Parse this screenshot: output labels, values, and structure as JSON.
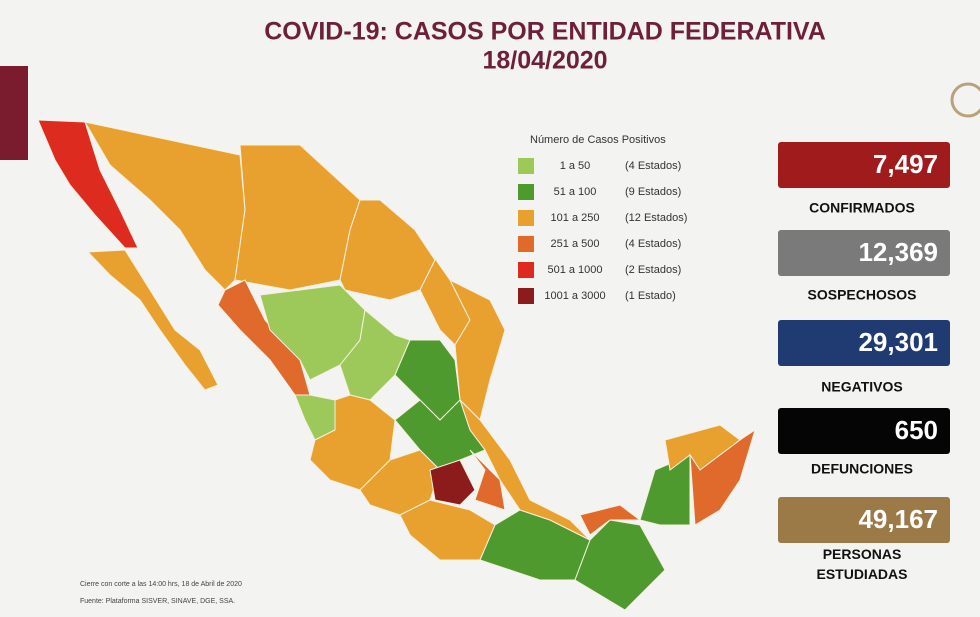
{
  "header": {
    "title": "COVID-19: CASOS POR ENTIDAD FEDERATIVA",
    "date": "18/04/2020"
  },
  "legend": {
    "title": "Número de Casos Positivos",
    "items": [
      {
        "label": "1 a 50",
        "count": "(4 Estados)",
        "color": "#9cc95a"
      },
      {
        "label": "51 a 100",
        "count": "(9 Estados)",
        "color": "#4f9a2e"
      },
      {
        "label": "101 a 250",
        "count": "(12 Estados)",
        "color": "#e8a12e"
      },
      {
        "label": "251 a 500",
        "count": "(4 Estados)",
        "color": "#df6a2c"
      },
      {
        "label": "501 a 1000",
        "count": "(2 Estados)",
        "color": "#dd2c1f"
      },
      {
        "label": "1001 a 3000",
        "count": "(1 Estado)",
        "color": "#8c1b1b"
      }
    ]
  },
  "stats": [
    {
      "value": "7,497",
      "label": "CONFIRMADOS",
      "color": "#a01c1c"
    },
    {
      "value": "12,369",
      "label": "SOSPECHOSOS",
      "color": "#7a7a7a"
    },
    {
      "value": "29,301",
      "label": "NEGATIVOS",
      "color": "#1f3b72"
    },
    {
      "value": "650",
      "label": "DEFUNCIONES",
      "color": "#050505"
    },
    {
      "value": "49,167",
      "label": "PERSONAS ESTUDIADAS",
      "color": "#9c7a48"
    }
  ],
  "footer": {
    "note": "Cierre con corte a las 14:00 hrs, 18 de Abril de 2020",
    "source": "Fuente: Plataforma SISVER, SINAVE, DGE, SSA."
  }
}
